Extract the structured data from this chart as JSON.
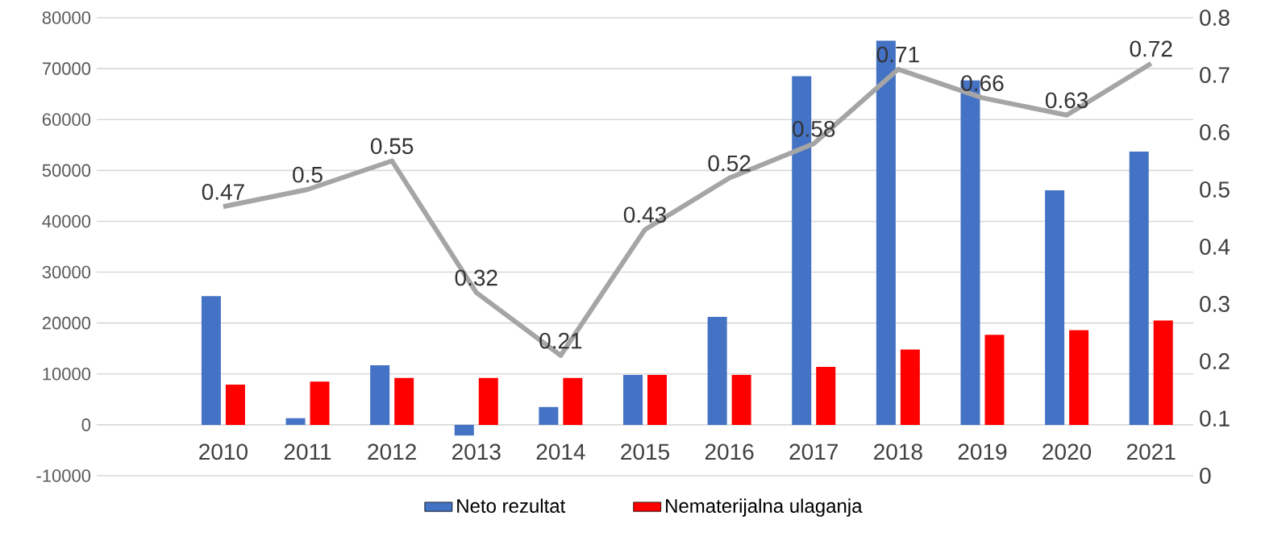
{
  "chart_data": {
    "type": "bar",
    "categories": [
      "2010",
      "2011",
      "2012",
      "2013",
      "2014",
      "2015",
      "2016",
      "2017",
      "2018",
      "2019",
      "2020",
      "2021"
    ],
    "series": [
      {
        "name": "Neto rezultat",
        "color": "#4472c4",
        "values": [
          25300,
          1300,
          11700,
          -2100,
          3500,
          9800,
          21200,
          68500,
          75500,
          67700,
          46100,
          53700
        ]
      },
      {
        "name": "Nematerijalna ulaganja",
        "color": "#ff0000",
        "values": [
          7900,
          8500,
          9200,
          9200,
          9200,
          9800,
          9800,
          11400,
          14800,
          17700,
          18600,
          20500
        ]
      },
      {
        "type": "line",
        "axis": "y2",
        "color": "#a5a5a5",
        "values": [
          0.47,
          0.5,
          0.55,
          0.32,
          0.21,
          0.43,
          0.52,
          0.58,
          0.71,
          0.66,
          0.63,
          0.72
        ],
        "value_labels": [
          "0.47",
          "0.5",
          "0.55",
          "0.32",
          "0.21",
          "0.43",
          "0.52",
          "0.58",
          "0.71",
          "0.66",
          "0.63",
          "0.72"
        ]
      }
    ],
    "ylim": [
      -10000,
      80000
    ],
    "yticks": [
      -10000,
      0,
      10000,
      20000,
      30000,
      40000,
      50000,
      60000,
      70000,
      80000
    ],
    "y2lim": [
      0,
      0.8
    ],
    "y2ticks": [
      0,
      0.1,
      0.2,
      0.3,
      0.4,
      0.5,
      0.6,
      0.7,
      0.8
    ],
    "grid": "y",
    "legend": "bottom",
    "marker": "none"
  }
}
